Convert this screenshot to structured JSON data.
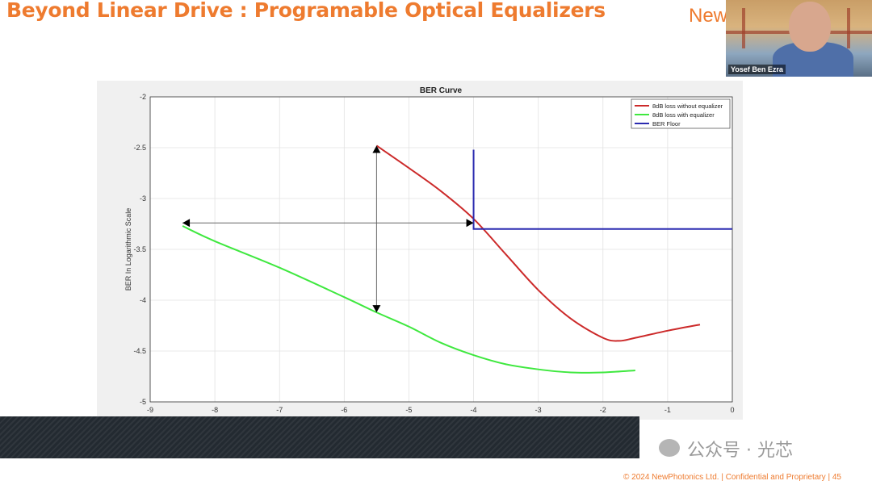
{
  "slide": {
    "title": "Beyond Linear Drive : Programable Optical Equalizers",
    "brand": "New",
    "footer": "© 2024 NewPhotonics Ltd. | Confidential and Proprietary | 45"
  },
  "video": {
    "participant_name": "Yosef Ben Ezra"
  },
  "watermark": {
    "text": "公众号 · 光芯"
  },
  "colors": {
    "accent": "#ee7b2f",
    "red_series": "#cc2a2a",
    "green_series": "#3fe83f",
    "blue_series": "#2b2bb0"
  },
  "chart_data": {
    "type": "line",
    "title": "BER Curve",
    "xlabel": "",
    "ylabel": "BER In Logarithmic Scale",
    "xlim": [
      -9,
      0
    ],
    "ylim": [
      -5,
      -2
    ],
    "xticks": [
      -9,
      -8,
      -7,
      -6,
      -5,
      -4,
      -3,
      -2,
      -1,
      0
    ],
    "yticks": [
      -2,
      -2.5,
      -3,
      -3.5,
      -4,
      -4.5,
      -5
    ],
    "grid": true,
    "legend_position": "top-right",
    "series": [
      {
        "name": "8dB loss without equalizer",
        "color": "#cc2a2a",
        "x": [
          -5.5,
          -5,
          -4.5,
          -4,
          -3.5,
          -3,
          -2.5,
          -2,
          -1.75,
          -1.5,
          -1,
          -0.5
        ],
        "y": [
          -2.48,
          -2.7,
          -2.93,
          -3.2,
          -3.55,
          -3.9,
          -4.18,
          -4.37,
          -4.4,
          -4.37,
          -4.3,
          -4.24
        ]
      },
      {
        "name": "8dB loss with equalizer",
        "color": "#3fe83f",
        "x": [
          -8.5,
          -8,
          -7,
          -6,
          -5.5,
          -5,
          -4.5,
          -4,
          -3.5,
          -3,
          -2.5,
          -2,
          -1.5
        ],
        "y": [
          -3.27,
          -3.42,
          -3.68,
          -3.97,
          -4.12,
          -4.26,
          -4.42,
          -4.54,
          -4.63,
          -4.68,
          -4.71,
          -4.71,
          -4.69
        ]
      },
      {
        "name": "BER Floor",
        "color": "#2b2bb0",
        "x": [
          -4,
          -4,
          0
        ],
        "y": [
          -2.52,
          -3.3,
          -3.3
        ]
      }
    ],
    "annotations": [
      {
        "type": "double-arrow",
        "x": [
          -5.5,
          -5.5
        ],
        "y": [
          -2.48,
          -4.12
        ]
      },
      {
        "type": "double-arrow",
        "x": [
          -8.5,
          -4
        ],
        "y": [
          -3.24,
          -3.24
        ]
      }
    ]
  }
}
